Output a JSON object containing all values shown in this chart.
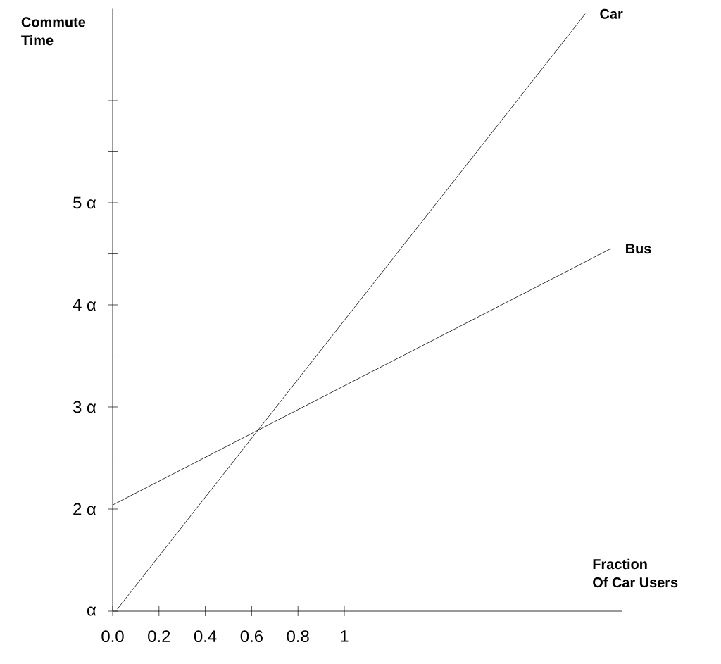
{
  "chart_data": {
    "type": "line",
    "xlabel": "Fraction\nOf Car Users",
    "ylabel": "Commute\nTime",
    "xlim": [
      0,
      2.2
    ],
    "ylim": [
      1,
      6.9
    ],
    "xticks": [
      {
        "value": 0,
        "label": "0.0"
      },
      0.2,
      0.4,
      0.6,
      0.8,
      1
    ],
    "yticks": [
      {
        "value": 1,
        "label": "α"
      },
      {
        "value": 1.5,
        "label": null
      },
      {
        "value": 2,
        "label": "2 α"
      },
      {
        "value": 2.5,
        "label": null
      },
      {
        "value": 3,
        "label": "3 α"
      },
      {
        "value": 3.5,
        "label": null
      },
      {
        "value": 4,
        "label": "4 α"
      },
      {
        "value": 4.5,
        "label": null
      },
      {
        "value": 5,
        "label": "5 α"
      },
      {
        "value": 5.5,
        "label": null
      },
      {
        "value": 6,
        "label": null
      }
    ],
    "series": [
      {
        "name": "Car",
        "color": "#000000",
        "x": [
          0.02,
          2.04
        ],
        "values": [
          1.02,
          6.85
        ]
      },
      {
        "name": "Bus",
        "color": "#000000",
        "x": [
          0,
          2.15
        ],
        "values": [
          2.04,
          4.55
        ]
      }
    ],
    "legend": false,
    "grid": false,
    "marker": "none",
    "line_style": "solid"
  }
}
